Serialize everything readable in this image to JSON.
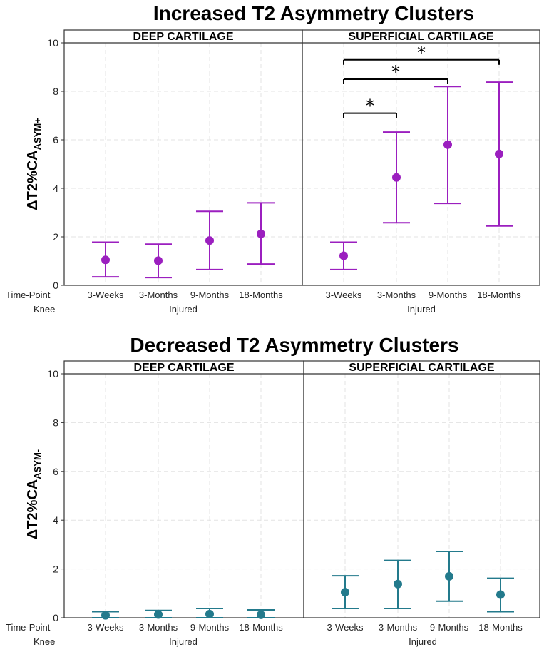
{
  "chart_data": [
    {
      "type": "errorbar",
      "title": "Increased T2 Asymmetry Clusters",
      "ylabel": "ΔT2%CA",
      "ylabel_subscript": "ASYM+",
      "ylim": [
        0,
        10
      ],
      "yticks": [
        "0",
        "2",
        "4",
        "6",
        "8",
        "10"
      ],
      "row_label_time": "Time-Point",
      "row_label_knee": "Knee",
      "color": "#9b1fbf",
      "panels": [
        {
          "label": "DEEP CARTILAGE",
          "knee": "Injured",
          "categories": [
            "3-Weeks",
            "3-Months",
            "9-Months",
            "18-Months"
          ],
          "means": [
            1.05,
            1.02,
            1.85,
            2.12
          ],
          "lower": [
            0.35,
            0.32,
            0.65,
            0.88
          ],
          "upper": [
            1.78,
            1.7,
            3.05,
            3.4
          ],
          "significance": []
        },
        {
          "label": "SUPERFICIAL CARTILAGE",
          "knee": "Injured",
          "categories": [
            "3-Weeks",
            "3-Months",
            "9-Months",
            "18-Months"
          ],
          "means": [
            1.22,
            4.45,
            5.8,
            5.42
          ],
          "lower": [
            0.65,
            2.58,
            3.38,
            2.45
          ],
          "upper": [
            1.78,
            6.32,
            8.2,
            8.38
          ],
          "significance": [
            {
              "from": 0,
              "to": 1,
              "label": "*",
              "level": 7.1
            },
            {
              "from": 0,
              "to": 2,
              "label": "*",
              "level": 8.5
            },
            {
              "from": 0,
              "to": 3,
              "label": "*",
              "level": 9.3
            }
          ]
        }
      ]
    },
    {
      "type": "errorbar",
      "title": "Decreased T2 Asymmetry Clusters",
      "ylabel": "ΔT2%CA",
      "ylabel_subscript": "ASYM-",
      "ylim": [
        0,
        10
      ],
      "yticks": [
        "0",
        "2",
        "4",
        "6",
        "8",
        "10"
      ],
      "row_label_time": "Time-Point",
      "row_label_knee": "Knee",
      "color": "#237a8c",
      "panels": [
        {
          "label": "DEEP CARTILAGE",
          "knee": "Injured",
          "categories": [
            "3-Weeks",
            "3-Months",
            "9-Months",
            "18-Months"
          ],
          "means": [
            0.1,
            0.13,
            0.15,
            0.12
          ],
          "lower": [
            0.0,
            0.0,
            0.0,
            0.0
          ],
          "upper": [
            0.25,
            0.3,
            0.38,
            0.32
          ],
          "significance": []
        },
        {
          "label": "SUPERFICIAL CARTILAGE",
          "knee": "Injured",
          "categories": [
            "3-Weeks",
            "3-Months",
            "9-Months",
            "18-Months"
          ],
          "means": [
            1.05,
            1.38,
            1.7,
            0.95
          ],
          "lower": [
            0.38,
            0.38,
            0.68,
            0.25
          ],
          "upper": [
            1.72,
            2.35,
            2.72,
            1.62
          ],
          "significance": []
        }
      ]
    }
  ]
}
